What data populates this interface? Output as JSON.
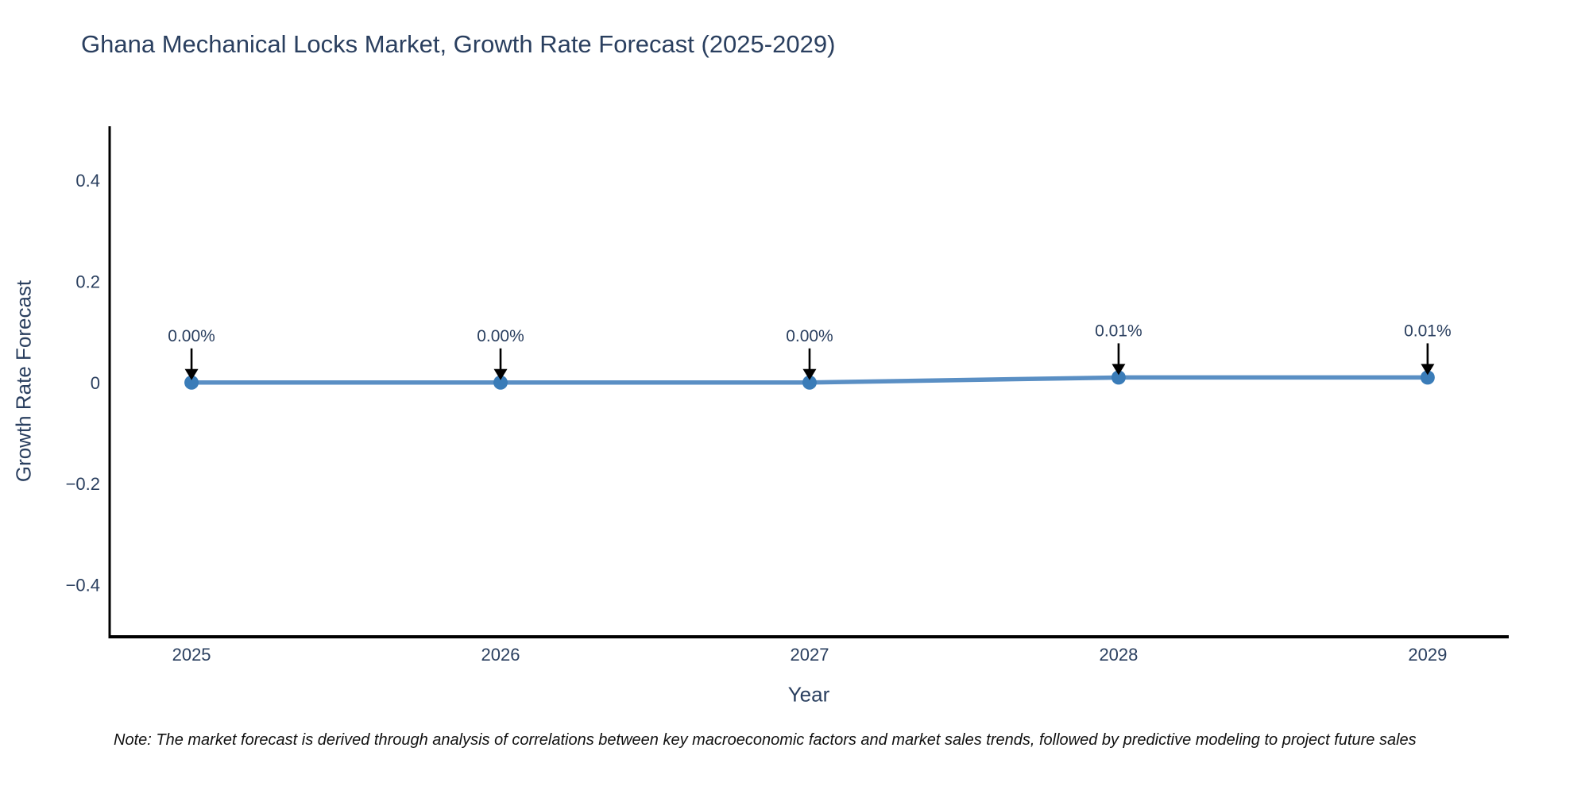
{
  "note": "Note: The market forecast is derived through analysis of correlations between key macroeconomic factors and market sales trends, followed by predictive modeling to project future sales",
  "chart_data": {
    "type": "line",
    "title": "Ghana Mechanical Locks Market, Growth Rate Forecast (2025-2029)",
    "xlabel": "Year",
    "ylabel": "Growth Rate Forecast",
    "categories": [
      2025,
      2026,
      2027,
      2028,
      2029
    ],
    "values": [
      0.0,
      0.0,
      0.0,
      0.01,
      0.01
    ],
    "point_labels": [
      "0.00%",
      "0.00%",
      "0.00%",
      "0.01%",
      "0.01%"
    ],
    "x_tick_labels": [
      "2025",
      "2026",
      "2027",
      "2028",
      "2029"
    ],
    "y_ticks": [
      0.4,
      0.2,
      0,
      -0.2,
      -0.4
    ],
    "y_tick_labels": [
      "0.4",
      "0.2",
      "0",
      "−0.2",
      "−0.4"
    ],
    "xlim": [
      2024.735,
      2029.26
    ],
    "ylim": [
      -0.503,
      0.507
    ],
    "grid": false,
    "legend": "none",
    "colors": {
      "line": "#5a8fc4",
      "marker": "#3a7cb8",
      "arrow": "#000000",
      "axis": "#000000",
      "text": "#2a3f5f",
      "note_text": "#111111"
    }
  }
}
